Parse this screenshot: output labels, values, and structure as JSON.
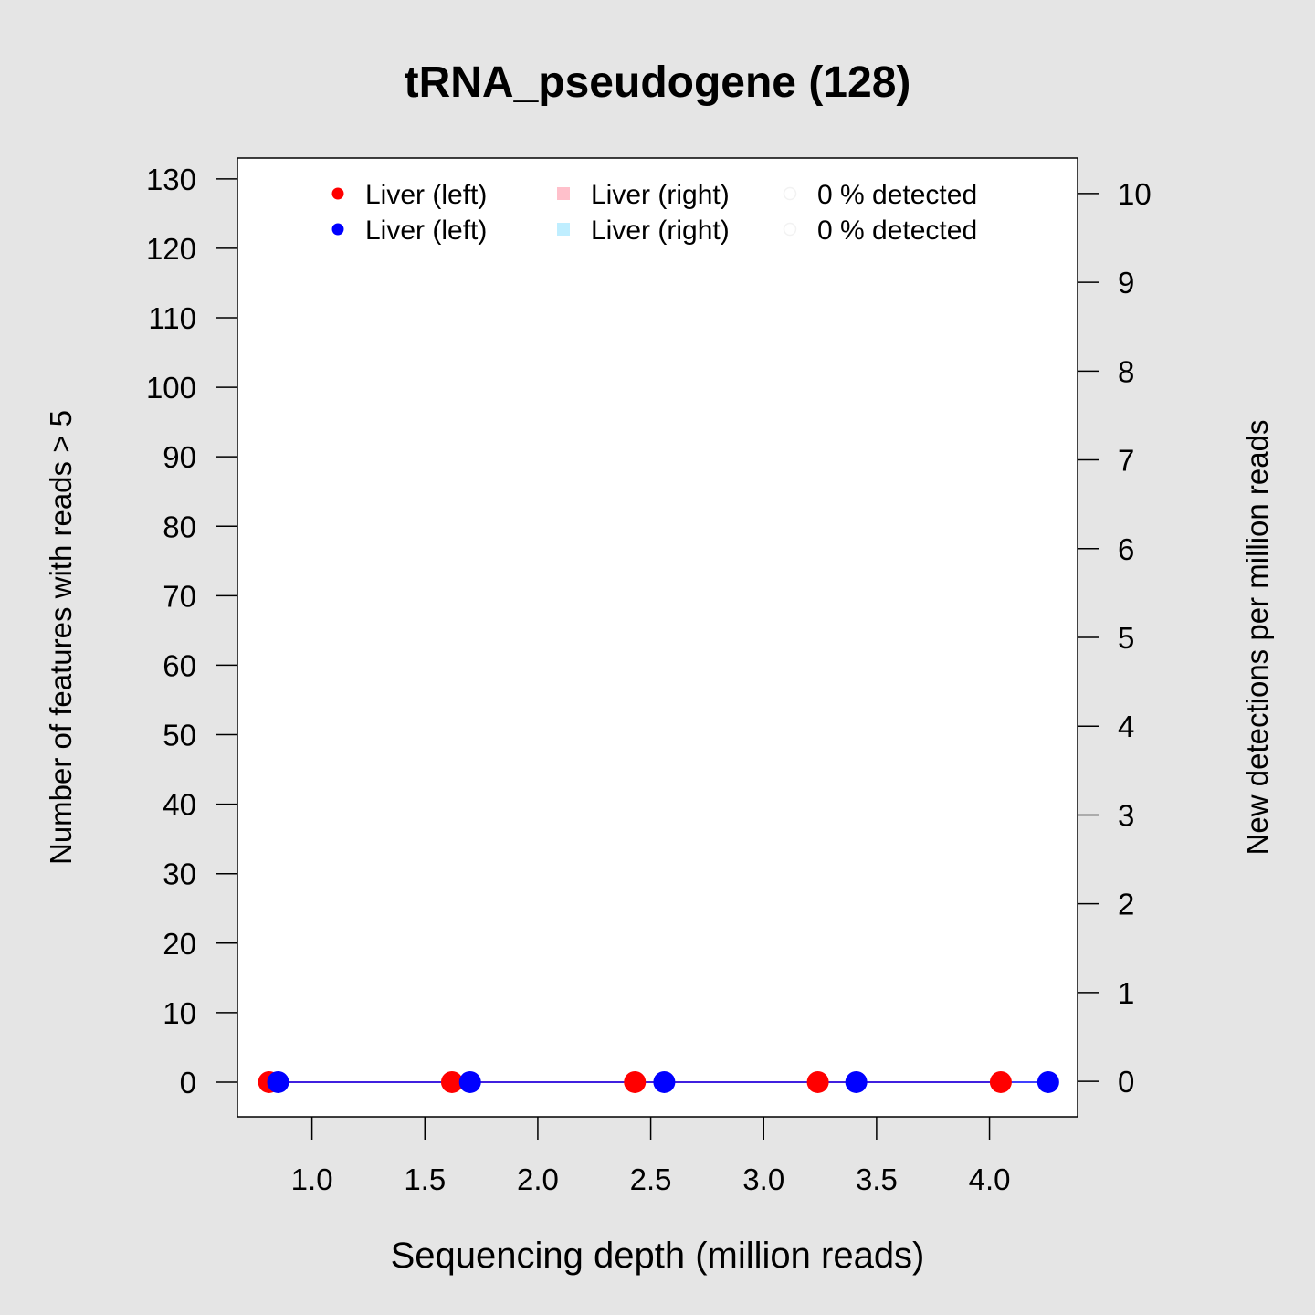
{
  "chart_data": {
    "type": "scatter",
    "title": "tRNA_pseudogene (128)",
    "xlabel": "Sequencing depth (million reads)",
    "ylabel": "Number of features with reads > 5",
    "y2label": "New detections per million reads",
    "xlim": [
      0.67,
      4.39
    ],
    "ylim": [
      -5,
      133
    ],
    "y2lim": [
      -0.4,
      10.4
    ],
    "xticks": [
      "1.0",
      "1.5",
      "2.0",
      "2.5",
      "3.0",
      "3.5",
      "4.0"
    ],
    "yticks": [
      "0",
      "10",
      "20",
      "30",
      "40",
      "50",
      "60",
      "70",
      "80",
      "90",
      "100",
      "110",
      "120",
      "130"
    ],
    "y2ticks": [
      "0",
      "1",
      "2",
      "3",
      "4",
      "5",
      "6",
      "7",
      "8",
      "9",
      "10"
    ],
    "series": [
      {
        "name": "Liver (left)",
        "color": "#ff0000",
        "x": [
          0.81,
          1.62,
          2.43,
          3.24,
          4.05
        ],
        "y": [
          0,
          0,
          0,
          0,
          0
        ]
      },
      {
        "name": "Liver (left)",
        "color": "#0000ff",
        "x": [
          0.85,
          1.7,
          2.56,
          3.41,
          4.26
        ],
        "y": [
          0,
          0,
          0,
          0,
          0
        ]
      }
    ],
    "legend": {
      "placement": "top",
      "entries": [
        {
          "label": "Liver (left)",
          "color": "#ff0000",
          "marker": "circle"
        },
        {
          "label": "Liver (right)",
          "color": "#ffc0cb",
          "marker": "square"
        },
        {
          "label": "0 % detected",
          "color": "#f2f2f2",
          "marker": "open-circle"
        },
        {
          "label": "Liver (left)",
          "color": "#0000ff",
          "marker": "circle"
        },
        {
          "label": "Liver (right)",
          "color": "#bfeeff",
          "marker": "square"
        },
        {
          "label": "0 % detected",
          "color": "#f2f2f2",
          "marker": "open-circle"
        }
      ]
    },
    "grid": false
  }
}
